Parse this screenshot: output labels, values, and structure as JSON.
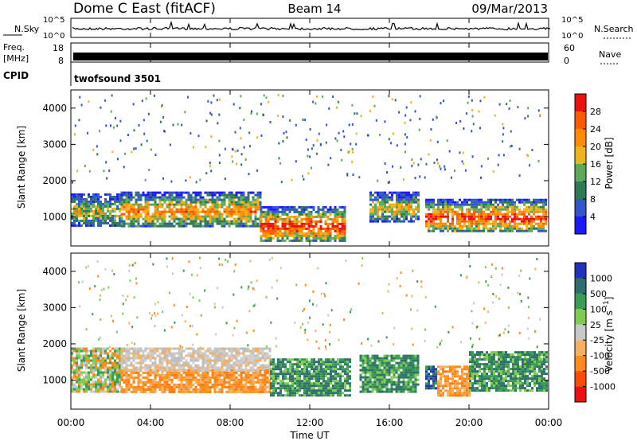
{
  "header": {
    "title": "Dome C East (fitACF)",
    "beam": "Beam 14",
    "date": "09/Mar/2013"
  },
  "noise_panel": {
    "left_label": "N.Sky",
    "right_label": "N.Search",
    "ticks_top": "10^5",
    "ticks_bottom": "10^0"
  },
  "freq_panel": {
    "left_label_line1": "Freq.",
    "left_label_line2": "[MHz]",
    "left_ticks": [
      "18",
      "8"
    ],
    "right_ticks": [
      "60",
      "0"
    ],
    "right_label": "Nave"
  },
  "cpid_panel": {
    "label": "CPID",
    "text": "twofsound 3501"
  },
  "chart_data": [
    {
      "type": "heatmap",
      "quantity": "Power",
      "ylabel": "Slant Range [km]",
      "yticks": [
        1000,
        2000,
        3000,
        4000
      ],
      "ylim": [
        200,
        4500
      ],
      "colorbar_label": "Power [dB]",
      "colorbar_ticks": [
        "4",
        "8",
        "12",
        "16",
        "20",
        "24",
        "28"
      ],
      "colorbar_colors": [
        "#1a1aff",
        "#3355cc",
        "#2f7a56",
        "#5aaa5a",
        "#f2b21a",
        "#ff8c00",
        "#ff5a00",
        "#ee1010"
      ],
      "echo_bands": [
        {
          "t0": 0.0,
          "t1": 2.5,
          "r0": 750,
          "r1": 1650,
          "level": 0.55
        },
        {
          "t0": 2.5,
          "t1": 9.5,
          "r0": 750,
          "r1": 1700,
          "level": 0.75
        },
        {
          "t0": 9.5,
          "t1": 13.8,
          "r0": 350,
          "r1": 1300,
          "level": 0.95
        },
        {
          "t0": 15.0,
          "t1": 17.5,
          "r0": 900,
          "r1": 1700,
          "level": 0.6
        },
        {
          "t0": 17.8,
          "t1": 23.9,
          "r0": 600,
          "r1": 1500,
          "level": 0.92
        }
      ]
    },
    {
      "type": "heatmap",
      "quantity": "Velocity",
      "xlabel": "Time UT",
      "ylabel": "Slant Range [km]",
      "yticks": [
        1000,
        2000,
        3000,
        4000
      ],
      "ylim": [
        200,
        4500
      ],
      "colorbar_label": "Velocity [m s^-1]",
      "colorbar_ticks": [
        "-1000",
        "-500",
        "-100",
        "-25",
        "25",
        "100",
        "500",
        "1000"
      ],
      "colorbar_colors": [
        "#ee1010",
        "#ff4a00",
        "#ff8c1a",
        "#f5b060",
        "#c8c8c8",
        "#7fcc55",
        "#3a9c55",
        "#2e6e6e",
        "#2233bb"
      ],
      "echo_bands": [
        {
          "t0": 0.0,
          "t1": 2.5,
          "r0": 700,
          "r1": 1900,
          "class": "mixed"
        },
        {
          "t0": 2.5,
          "t1": 10.0,
          "r0": 700,
          "r1": 1300,
          "class": "orange"
        },
        {
          "t0": 2.5,
          "t1": 10.0,
          "r0": 1300,
          "r1": 1900,
          "class": "grey"
        },
        {
          "t0": 10.0,
          "t1": 14.0,
          "r0": 600,
          "r1": 1600,
          "class": "green"
        },
        {
          "t0": 14.5,
          "t1": 17.5,
          "r0": 700,
          "r1": 1700,
          "class": "green"
        },
        {
          "t0": 17.8,
          "t1": 18.4,
          "r0": 800,
          "r1": 1400,
          "class": "blue"
        },
        {
          "t0": 18.4,
          "t1": 20.0,
          "r0": 600,
          "r1": 1400,
          "class": "orange"
        },
        {
          "t0": 20.0,
          "t1": 23.9,
          "r0": 700,
          "r1": 1800,
          "class": "green"
        }
      ]
    }
  ],
  "time_axis": {
    "xlabel": "Time UT",
    "xlim": [
      0,
      24
    ],
    "ticks": [
      "00:00",
      "04:00",
      "08:00",
      "12:00",
      "16:00",
      "20:00",
      "00:00"
    ]
  }
}
